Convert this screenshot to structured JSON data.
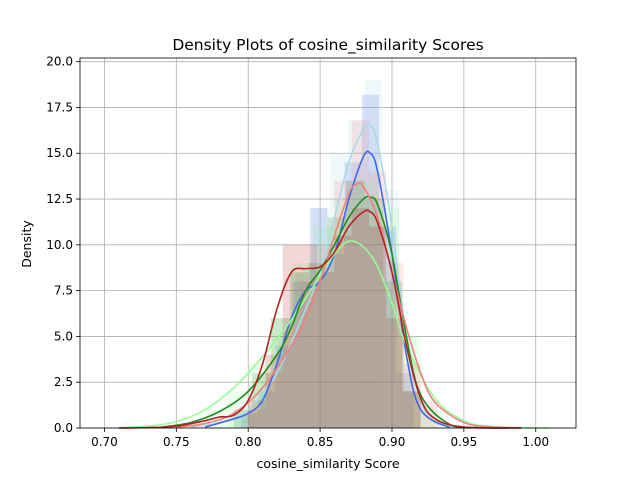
{
  "chart_data": {
    "type": "area",
    "title": "Density Plots of cosine_similarity Scores",
    "xlabel": "cosine_similarity Score",
    "ylabel": "Density",
    "xlim": [
      0.683,
      1.028
    ],
    "ylim": [
      0,
      20.2
    ],
    "xticks": [
      0.7,
      0.75,
      0.8,
      0.85,
      0.9,
      0.95,
      1.0
    ],
    "xtick_labels": [
      "0.70",
      "0.75",
      "0.80",
      "0.85",
      "0.90",
      "0.95",
      "1.00"
    ],
    "yticks": [
      0,
      2.5,
      5,
      7.5,
      10,
      12.5,
      15,
      17.5,
      20
    ],
    "ytick_labels": [
      "0.0",
      "2.5",
      "5.0",
      "7.5",
      "10.0",
      "12.5",
      "15.0",
      "17.5",
      "20.0"
    ],
    "grid": true,
    "series": [
      {
        "color": "#add8e6",
        "hist": {
          "edges": [
            0.785,
            0.797,
            0.809,
            0.821,
            0.833,
            0.845,
            0.857,
            0.869,
            0.881,
            0.893,
            0.905,
            0.917,
            0.929
          ],
          "values": [
            0.5,
            1.0,
            2.5,
            5.0,
            8.5,
            12.0,
            15.0,
            16.8,
            19.0,
            13.0,
            5.0,
            1.2
          ]
        },
        "kde": {
          "x": [
            0.76,
            0.78,
            0.8,
            0.82,
            0.84,
            0.85,
            0.86,
            0.87,
            0.88,
            0.885,
            0.89,
            0.9,
            0.91,
            0.92,
            0.93,
            0.95
          ],
          "y": [
            0.05,
            0.3,
            1.0,
            3.0,
            6.5,
            8.5,
            11.5,
            14.5,
            16.3,
            16.5,
            15.5,
            11.0,
            5.0,
            1.5,
            0.3,
            0.02
          ]
        }
      },
      {
        "color": "#4169e1",
        "hist": {
          "edges": [
            0.795,
            0.807,
            0.819,
            0.831,
            0.843,
            0.855,
            0.867,
            0.879,
            0.891,
            0.903,
            0.915
          ],
          "values": [
            0.8,
            2.0,
            4.5,
            8.0,
            12.0,
            9.5,
            14.5,
            18.2,
            11.0,
            3.0
          ]
        },
        "kde": {
          "x": [
            0.77,
            0.79,
            0.8,
            0.81,
            0.82,
            0.83,
            0.84,
            0.85,
            0.86,
            0.87,
            0.88,
            0.885,
            0.89,
            0.9,
            0.91,
            0.92,
            0.94
          ],
          "y": [
            0.05,
            0.5,
            0.8,
            1.5,
            3.5,
            6.0,
            7.5,
            8.0,
            9.5,
            12.5,
            14.8,
            15.0,
            14.0,
            9.5,
            4.0,
            1.0,
            0.02
          ]
        }
      },
      {
        "color": "#98fb98",
        "hist": {
          "edges": [
            0.77,
            0.785,
            0.8,
            0.815,
            0.83,
            0.845,
            0.86,
            0.875,
            0.89,
            0.905,
            0.92,
            0.935
          ],
          "values": [
            1.0,
            2.0,
            3.5,
            6.0,
            9.0,
            11.0,
            12.5,
            13.5,
            12.0,
            5.0,
            1.0
          ]
        },
        "kde": {
          "x": [
            0.71,
            0.73,
            0.75,
            0.77,
            0.79,
            0.81,
            0.83,
            0.85,
            0.86,
            0.87,
            0.88,
            0.89,
            0.9,
            0.91,
            0.93,
            0.95,
            0.97,
            1.01
          ],
          "y": [
            0.02,
            0.1,
            0.35,
            1.0,
            2.2,
            3.9,
            5.9,
            8.3,
            9.5,
            10.2,
            9.9,
            8.8,
            6.8,
            4.5,
            1.6,
            0.4,
            0.08,
            0.0
          ]
        }
      },
      {
        "color": "#228b22",
        "hist": {
          "edges": [
            0.79,
            0.803,
            0.816,
            0.829,
            0.842,
            0.855,
            0.868,
            0.881,
            0.894,
            0.907,
            0.92
          ],
          "values": [
            1.0,
            3.0,
            6.0,
            8.5,
            9.0,
            11.5,
            13.5,
            12.5,
            8.0,
            2.0
          ]
        },
        "kde": {
          "x": [
            0.74,
            0.76,
            0.78,
            0.8,
            0.82,
            0.83,
            0.84,
            0.85,
            0.86,
            0.87,
            0.88,
            0.885,
            0.89,
            0.9,
            0.91,
            0.92,
            0.94,
            0.96
          ],
          "y": [
            0.05,
            0.3,
            0.9,
            2.0,
            4.0,
            5.5,
            7.5,
            8.6,
            10.0,
            11.5,
            12.5,
            12.6,
            12.2,
            9.5,
            5.0,
            1.8,
            0.2,
            0.02
          ]
        }
      },
      {
        "color": "#f08080",
        "hist": {
          "edges": [
            0.8,
            0.812,
            0.824,
            0.836,
            0.848,
            0.86,
            0.872,
            0.884,
            0.896,
            0.908,
            0.92,
            0.932
          ],
          "values": [
            1.0,
            3.0,
            5.5,
            8.0,
            10.0,
            13.5,
            16.8,
            14.0,
            9.0,
            3.5,
            1.5
          ]
        },
        "kde": {
          "x": [
            0.75,
            0.77,
            0.79,
            0.81,
            0.83,
            0.84,
            0.85,
            0.86,
            0.87,
            0.875,
            0.88,
            0.89,
            0.9,
            0.91,
            0.92,
            0.93,
            0.95,
            0.97,
            0.99
          ],
          "y": [
            0.05,
            0.25,
            0.8,
            2.2,
            4.5,
            6.0,
            8.0,
            10.5,
            12.8,
            13.3,
            13.2,
            11.5,
            8.5,
            5.5,
            3.0,
            1.4,
            0.3,
            0.05,
            0.01
          ]
        }
      },
      {
        "color": "#b22222",
        "hist": {
          "edges": [
            0.8,
            0.812,
            0.824,
            0.836,
            0.848,
            0.86,
            0.872,
            0.884,
            0.896,
            0.908,
            0.92
          ],
          "values": [
            1.5,
            4.0,
            10.0,
            10.0,
            8.5,
            10.5,
            12.0,
            11.0,
            6.0,
            2.0
          ]
        },
        "kde": {
          "x": [
            0.71,
            0.73,
            0.75,
            0.77,
            0.78,
            0.79,
            0.8,
            0.81,
            0.82,
            0.83,
            0.84,
            0.85,
            0.86,
            0.87,
            0.88,
            0.885,
            0.89,
            0.9,
            0.91,
            0.92,
            0.93,
            0.95,
            0.99
          ],
          "y": [
            0.0,
            0.02,
            0.1,
            0.4,
            0.6,
            0.7,
            1.5,
            3.5,
            6.5,
            8.5,
            8.7,
            8.8,
            9.6,
            11.0,
            11.8,
            11.8,
            11.2,
            8.5,
            4.5,
            1.6,
            0.5,
            0.05,
            0.0
          ]
        }
      }
    ]
  }
}
